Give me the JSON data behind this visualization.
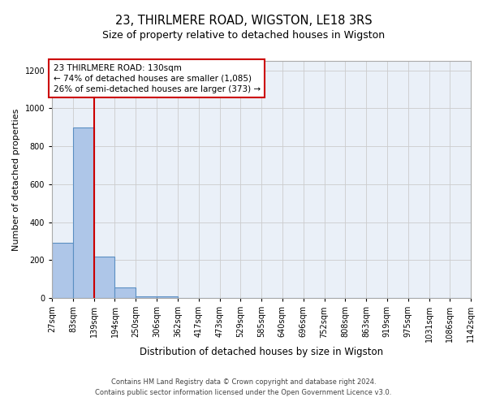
{
  "title": "23, THIRLMERE ROAD, WIGSTON, LE18 3RS",
  "subtitle": "Size of property relative to detached houses in Wigston",
  "xlabel": "Distribution of detached houses by size in Wigston",
  "ylabel": "Number of detached properties",
  "annotation_line1": "23 THIRLMERE ROAD: 130sqm",
  "annotation_line2": "← 74% of detached houses are smaller (1,085)",
  "annotation_line3": "26% of semi-detached houses are larger (373) →",
  "bin_labels": [
    "27sqm",
    "83sqm",
    "139sqm",
    "194sqm",
    "250sqm",
    "306sqm",
    "362sqm",
    "417sqm",
    "473sqm",
    "529sqm",
    "585sqm",
    "640sqm",
    "696sqm",
    "752sqm",
    "808sqm",
    "863sqm",
    "919sqm",
    "975sqm",
    "1031sqm",
    "1086sqm",
    "1142sqm"
  ],
  "bin_edges": [
    27,
    83,
    139,
    194,
    250,
    306,
    362,
    417,
    473,
    529,
    585,
    640,
    696,
    752,
    808,
    863,
    919,
    975,
    1031,
    1086,
    1142
  ],
  "bar_heights": [
    290,
    900,
    220,
    55,
    10,
    10,
    0,
    0,
    0,
    0,
    0,
    0,
    0,
    0,
    0,
    0,
    0,
    0,
    0,
    0
  ],
  "bar_color": "#aec6e8",
  "bar_edge_color": "#5a8fc2",
  "bar_edge_width": 0.8,
  "red_line_color": "#cc0000",
  "annotation_box_edge_color": "#cc0000",
  "annotation_box_face_color": "#ffffff",
  "grid_color": "#cccccc",
  "background_color": "#eaf0f8",
  "ylim": [
    0,
    1250
  ],
  "yticks": [
    0,
    200,
    400,
    600,
    800,
    1000,
    1200
  ],
  "title_fontsize": 10.5,
  "subtitle_fontsize": 9,
  "xlabel_fontsize": 8.5,
  "ylabel_fontsize": 8,
  "tick_fontsize": 7,
  "annotation_fontsize": 7.5,
  "footer_line1": "Contains HM Land Registry data © Crown copyright and database right 2024.",
  "footer_line2": "Contains public sector information licensed under the Open Government Licence v3.0.",
  "footer_fontsize": 6
}
